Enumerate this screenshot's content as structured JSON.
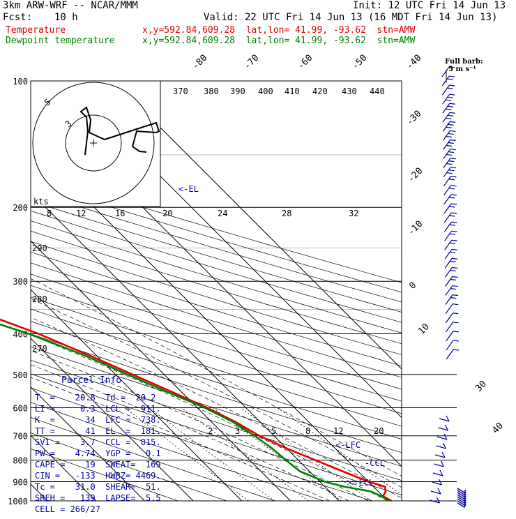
{
  "header": {
    "model": "3km ARW-WRF -- NCAR/MMM",
    "init": "Init: 12 UTC Fri 14 Jun 13",
    "fcst_label": "Fcst:",
    "fcst_value": "10 h",
    "valid": "Valid: 22 UTC Fri 14 Jun 13 (16 MDT Fri 14 Jun 13)"
  },
  "legend": {
    "temperature": {
      "label": "Temperature",
      "info": "x,y=592.84,609.28  lat,lon= 41.99, -93.62  stn=AMW",
      "color": "#e00000"
    },
    "dewpoint": {
      "label": "Dewpoint temperature",
      "info": "x,y=592.84,609.28  lat,lon= 41.99, -93.62  stn=AMW",
      "color": "#008000"
    }
  },
  "wind_key": {
    "label": "Full barb:",
    "value": "5 m s⁻¹"
  },
  "hodograph": {
    "rings": [
      "5",
      "3"
    ],
    "units": "kts"
  },
  "levels": {
    "eL": "<-EL",
    "lfc": "<-LFC",
    "ccl": "-CCL",
    "lcl": "<-LCL"
  },
  "parcel_info": {
    "title": "Parcel Info",
    "rows": [
      "T  =    20.8  Td =  20.2",
      "LI =     0.3  LCL =  911.",
      "K  =      34  LFC =  738.",
      "TT =      41  EL  =  181.",
      "SVI =    3.7  CCL =  815.",
      "PW =    4.74  YGP =   0.1",
      "CAPE =    19  SWEAT=  169",
      "CIN =   -133  HWBZ= 4469.",
      "Tc =    31.0  SHEAR=  51.",
      "SREH =   139  LAPSE=  5.5",
      "CELL = 266/27"
    ]
  },
  "chart_data": {
    "type": "line",
    "title": "",
    "xlabel": "",
    "ylabel": "",
    "y_scale": "log-pressure",
    "ylim": [
      1000,
      100
    ],
    "pressure_ticks": [
      "100",
      "200",
      "300",
      "400",
      "500",
      "600",
      "700",
      "800",
      "900",
      "1000"
    ],
    "temperature_ticks": [
      "-80",
      "-70",
      "-60",
      "-50",
      "-40",
      "-30",
      "-20",
      "-10",
      "0",
      "10",
      "20",
      "30",
      "40"
    ],
    "theta_e_labels": [
      "370",
      "380",
      "390",
      "400",
      "410",
      "420",
      "430",
      "440"
    ],
    "theta_labels": [
      "290",
      "280",
      "270"
    ],
    "thetaw_labels": [
      "8",
      "12",
      "16",
      "20",
      "24",
      "28",
      "32"
    ],
    "mixing_ratio_labels": [
      "2",
      "3",
      "5",
      "8",
      "12",
      "20"
    ],
    "grid": true,
    "series": [
      {
        "name": "Temperature",
        "color": "#e00000",
        "points": [
          [
            1000,
            20.8
          ],
          [
            975,
            20.0
          ],
          [
            950,
            21.5
          ],
          [
            925,
            22.4
          ],
          [
            900,
            20.0
          ],
          [
            850,
            16.8
          ],
          [
            800,
            13.5
          ],
          [
            750,
            10.0
          ],
          [
            700,
            7.0
          ],
          [
            650,
            5.0
          ],
          [
            600,
            2.0
          ],
          [
            550,
            -2.0
          ],
          [
            500,
            -6.5
          ],
          [
            450,
            -11.5
          ],
          [
            400,
            -17.5
          ],
          [
            350,
            -26.0
          ],
          [
            300,
            -34.0
          ],
          [
            250,
            -43.5
          ],
          [
            200,
            -54.0
          ],
          [
            180,
            -58.0
          ],
          [
            160,
            -59.5
          ],
          [
            150,
            -58.0
          ],
          [
            140,
            -53.0
          ],
          [
            125,
            -52.0
          ],
          [
            110,
            -54.0
          ],
          [
            100,
            -54.5
          ]
        ]
      },
      {
        "name": "Dewpoint temperature",
        "color": "#008000",
        "points": [
          [
            1000,
            20.2
          ],
          [
            975,
            19.7
          ],
          [
            950,
            18.5
          ],
          [
            925,
            14.0
          ],
          [
            900,
            11.0
          ],
          [
            850,
            8.0
          ],
          [
            800,
            7.5
          ],
          [
            750,
            7.0
          ],
          [
            700,
            6.0
          ],
          [
            650,
            4.5
          ],
          [
            600,
            1.5
          ],
          [
            550,
            -3.0
          ],
          [
            500,
            -7.5
          ],
          [
            450,
            -12.5
          ],
          [
            400,
            -19.5
          ],
          [
            350,
            -30.0
          ],
          [
            300,
            -39.5
          ],
          [
            250,
            -48.5
          ],
          [
            200,
            -56.5
          ],
          [
            180,
            -60.0
          ],
          [
            160,
            -65.0
          ],
          [
            150,
            -66.0
          ],
          [
            140,
            -69.0
          ],
          [
            125,
            -74.0
          ],
          [
            110,
            -75.0
          ],
          [
            100,
            -75.5
          ]
        ]
      }
    ],
    "barbs_right": [
      3,
      9,
      14,
      20,
      22,
      21,
      20,
      19,
      18,
      17,
      16,
      15,
      14,
      14,
      14,
      14,
      13,
      13,
      12,
      12,
      11,
      11,
      10,
      10,
      9,
      8,
      7,
      6,
      5,
      4,
      3,
      2
    ],
    "barbs_axis": [
      2,
      2,
      3,
      4,
      3,
      2,
      2,
      1,
      1,
      2
    ]
  }
}
